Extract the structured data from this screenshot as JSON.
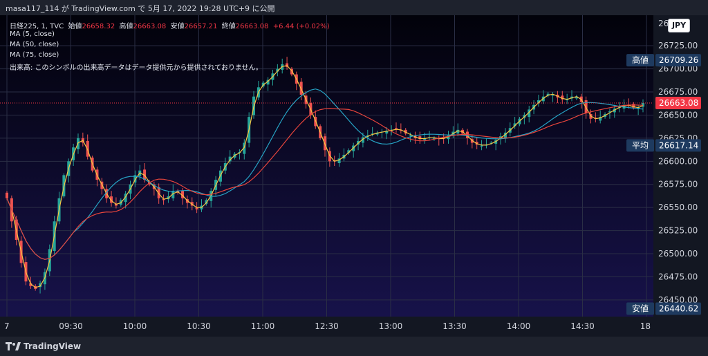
{
  "header": {
    "publish_line": "masa117_114 が TradingView.com で 5月 17, 2022 19:28 UTC+9 に公開"
  },
  "legend": {
    "symbol": "日経225, 1, TVC",
    "open_label": "始値",
    "open": "26658.32",
    "high_label": "高値",
    "high": "26663.08",
    "low_label": "安値",
    "low": "26657.21",
    "close_label": "終値",
    "close": "26663.08",
    "change": "+6.44 (+0.02%)",
    "ma5": "MA (5, close)",
    "ma50": "MA (50, close)",
    "ma75": "MA (75, close)",
    "volume_note": "出来高: このシンボルの出来高データはデータ提供元から提供されておりません。"
  },
  "currency": "JPY",
  "footer": {
    "brand": "TradingView"
  },
  "colors": {
    "bull": "#26a69a",
    "bear": "#ef5350",
    "ma5": "#f5c542",
    "ma50": "#26a3c4",
    "ma75": "#e8453c",
    "price_tag": "#f23645",
    "info_tag": "#1e3a5f"
  },
  "chart_data": {
    "type": "candlestick",
    "title": "日経225, 1, TVC",
    "x_ticks": [
      "7",
      "09:30",
      "10:00",
      "10:30",
      "11:00",
      "12:30",
      "13:00",
      "13:30",
      "14:00",
      "14:30",
      "18"
    ],
    "y_ticks": [
      26450,
      26475,
      26500,
      26525,
      26550,
      26575,
      26600,
      26625,
      26650,
      26675,
      26700,
      26725
    ],
    "y_top_partial": "26",
    "ylim": [
      26432,
      26758
    ],
    "price_labels": [
      {
        "label": "高値",
        "value": 26709.26
      },
      {
        "label": "",
        "value": 26663.08
      },
      {
        "label": "平均",
        "value": 26617.14
      },
      {
        "label": "安値",
        "value": 26440.62
      }
    ],
    "close_series": [
      26560,
      26535,
      26515,
      26490,
      26470,
      26465,
      26462,
      26468,
      26480,
      26505,
      26535,
      26560,
      26585,
      26600,
      26615,
      26625,
      26620,
      26605,
      26590,
      26580,
      26570,
      26560,
      26555,
      26552,
      26558,
      26565,
      26575,
      26585,
      26590,
      26580,
      26575,
      26570,
      26560,
      26558,
      26562,
      26568,
      26566,
      26560,
      26555,
      26552,
      26548,
      26552,
      26558,
      26568,
      26580,
      26590,
      26598,
      26605,
      26608,
      26610,
      26620,
      26648,
      26670,
      26680,
      26685,
      26688,
      26695,
      26700,
      26705,
      26702,
      26694,
      26684,
      26672,
      26662,
      26650,
      26638,
      26625,
      26612,
      26600,
      26600,
      26603,
      26607,
      26612,
      26617,
      26622,
      26626,
      26628,
      26630,
      26631,
      26632,
      26633,
      26634,
      26635,
      26633,
      26630,
      26628,
      26625,
      26624,
      26625,
      26626,
      26625,
      26624,
      26625,
      26628,
      26632,
      26634,
      26630,
      26625,
      26620,
      26618,
      26617,
      26618,
      26620,
      26623,
      26627,
      26631,
      26636,
      26641,
      26646,
      26650,
      26656,
      26661,
      26666,
      26670,
      26673,
      26672,
      26669,
      26667,
      26667,
      26670,
      26670,
      26664,
      26652,
      26646,
      26646,
      26648,
      26651,
      26654,
      26657,
      26659,
      26661,
      26660,
      26658,
      26658,
      26663
    ]
  }
}
